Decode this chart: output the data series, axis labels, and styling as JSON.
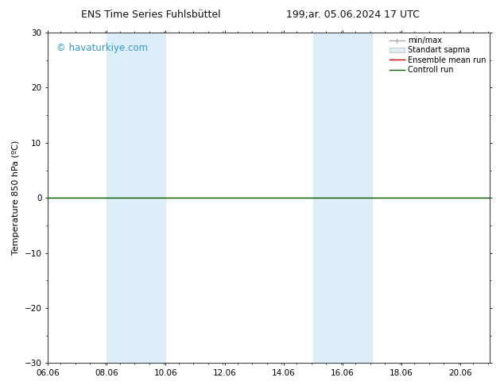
{
  "title_left": "ENS Time Series Fuhlsbüttel",
  "title_right": "199;ar. 05.06.2024 17 UTC",
  "ylabel": "Temperature 850 hPa (ºC)",
  "watermark": "© havaturkiye.com",
  "xlim": [
    6.06,
    21.06
  ],
  "ylim": [
    -30,
    30
  ],
  "yticks": [
    -30,
    -20,
    -10,
    0,
    10,
    20,
    30
  ],
  "xtick_labels": [
    "06.06",
    "08.06",
    "10.06",
    "12.06",
    "14.06",
    "16.06",
    "18.06",
    "20.06"
  ],
  "xtick_values": [
    6.06,
    8.06,
    10.06,
    12.06,
    14.06,
    16.06,
    18.06,
    20.06
  ],
  "shaded_regions": [
    [
      8.06,
      9.06
    ],
    [
      9.06,
      10.06
    ],
    [
      15.06,
      16.06
    ],
    [
      16.06,
      17.06
    ]
  ],
  "shaded_color": "#ddeef8",
  "control_run_color": "#006400",
  "ensemble_mean_color": "#cc0000",
  "background_color": "#ffffff",
  "grid_color": "#cccccc",
  "title_fontsize": 9,
  "axis_label_fontsize": 8,
  "tick_fontsize": 7.5,
  "watermark_fontsize": 8.5,
  "watermark_color": "#3399cc",
  "legend_fontsize": 7,
  "spine_color": "#444444"
}
